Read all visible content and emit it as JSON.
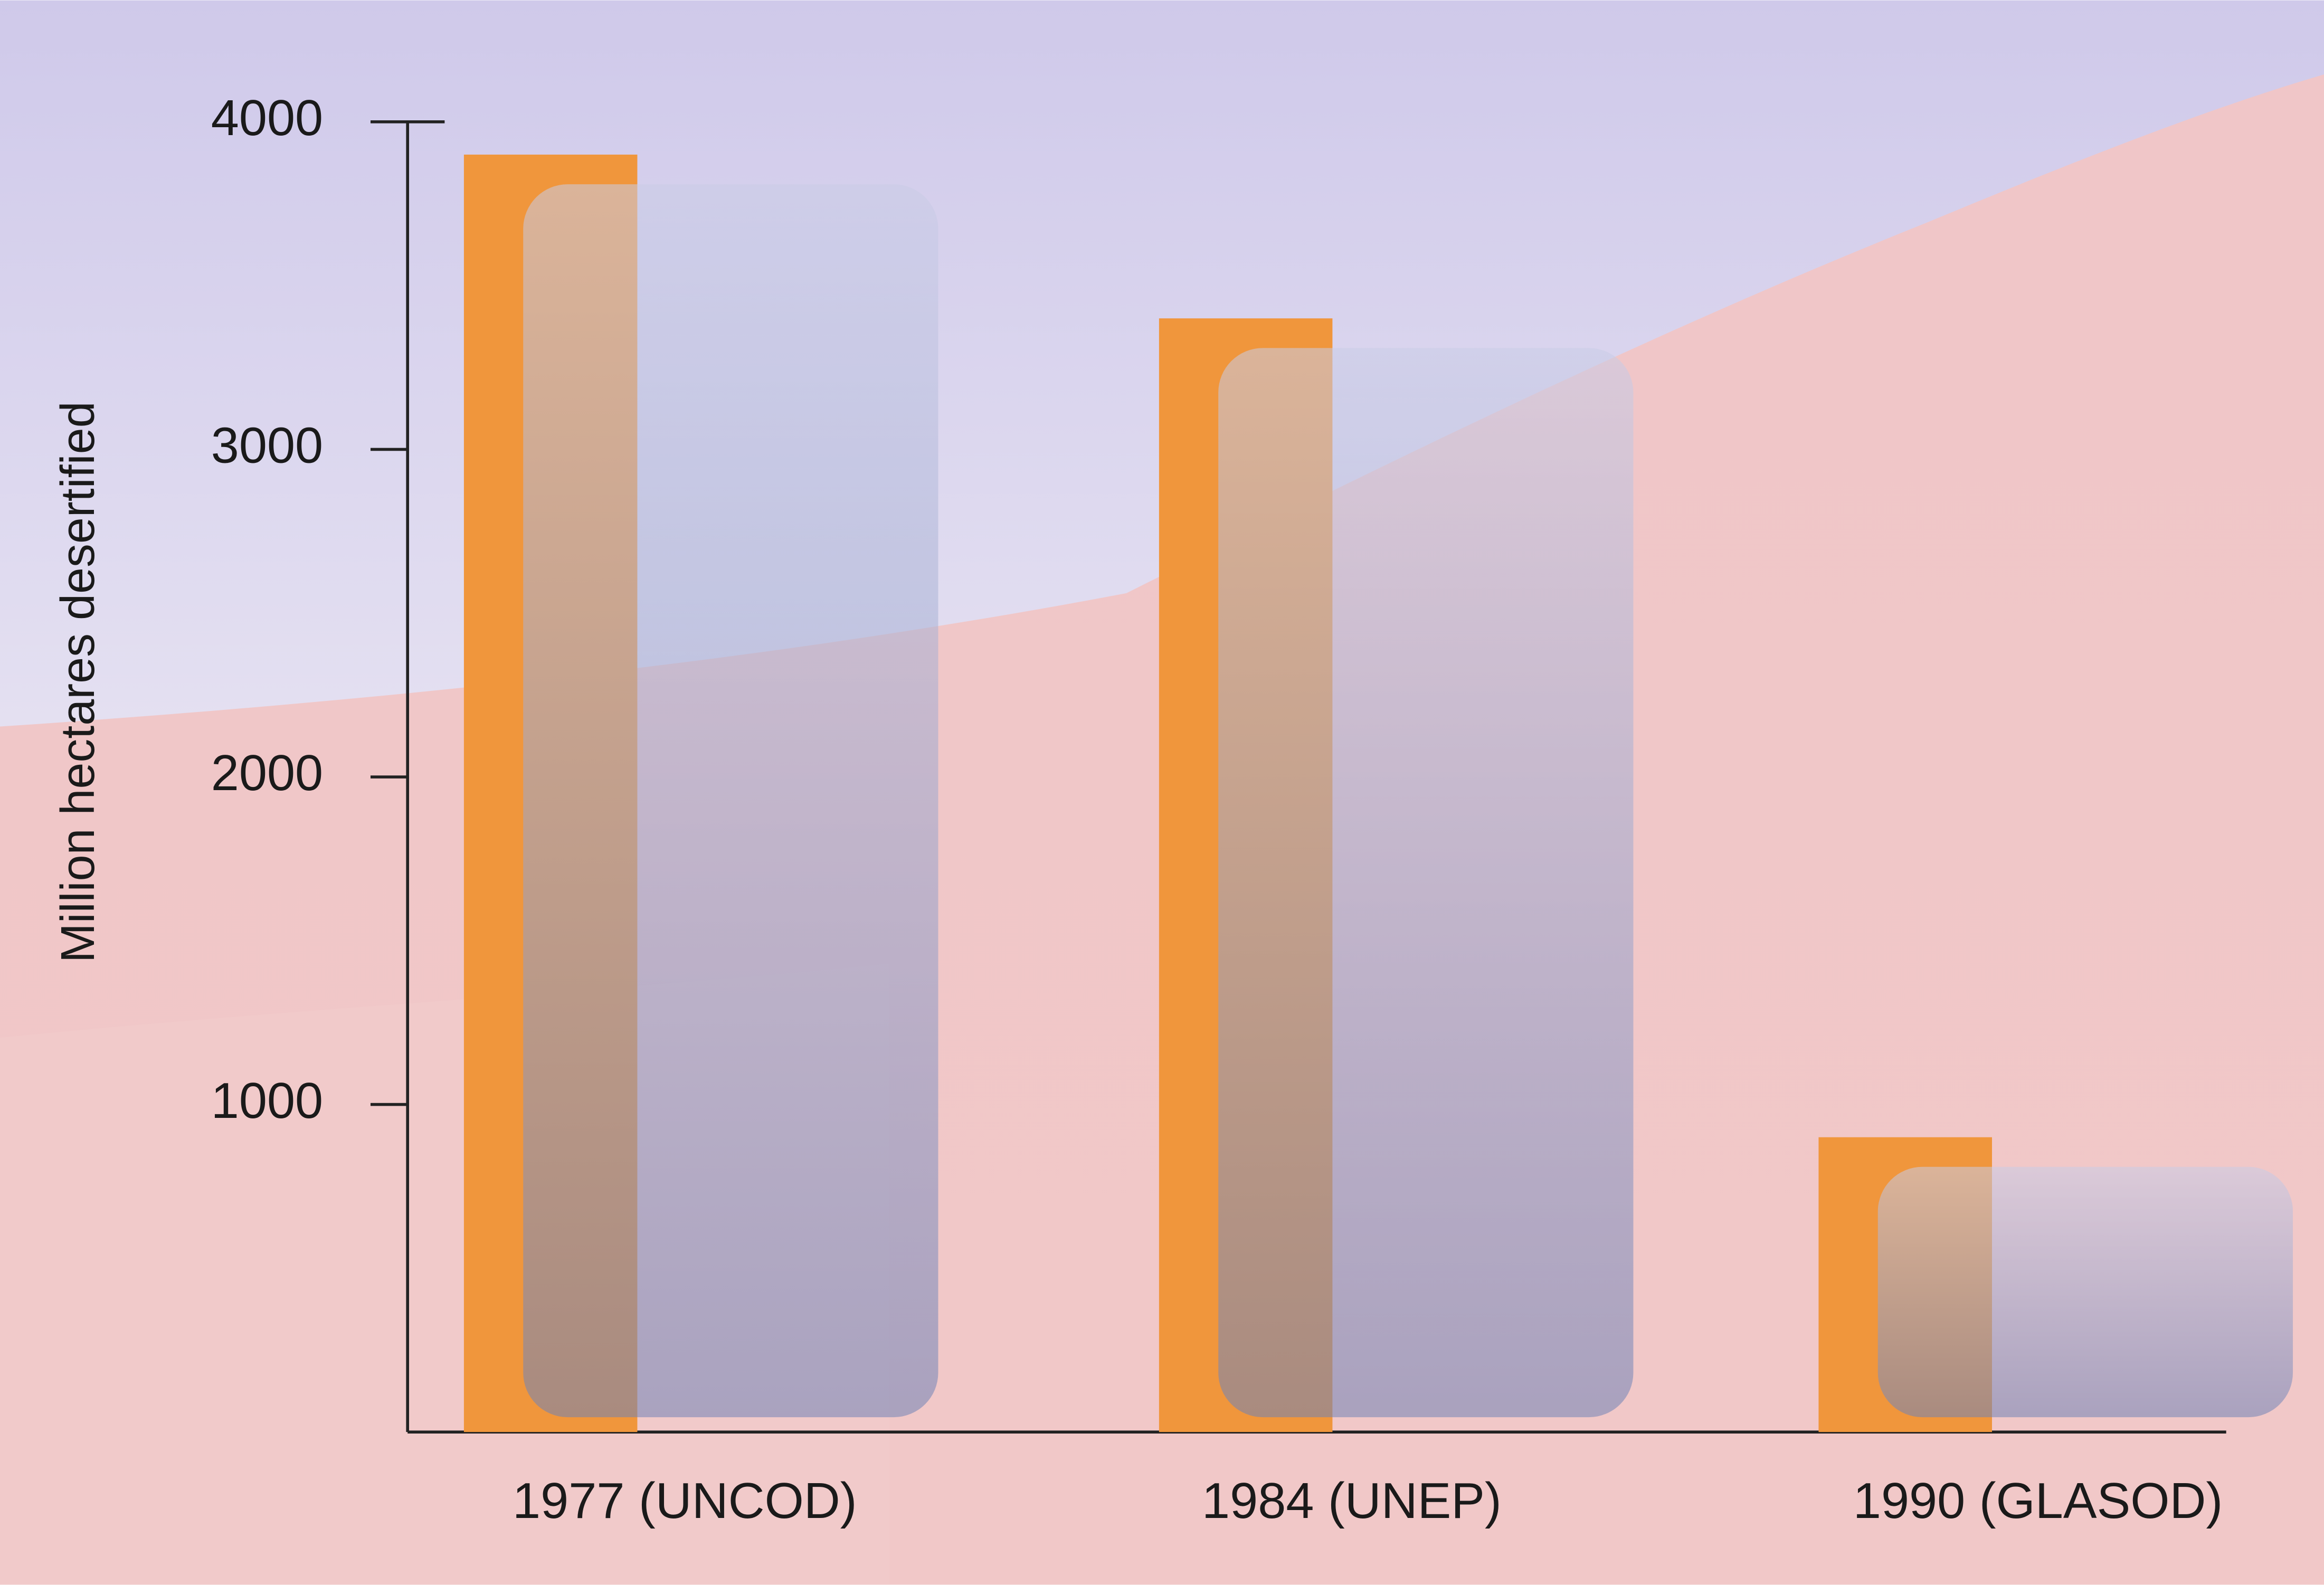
{
  "chart_data": {
    "type": "bar",
    "y_label": "Million hectares desertified",
    "categories": [
      "1977 (UNCOD)",
      "1984 (UNEP)",
      "1990 (GLASOD)"
    ],
    "values": [
      3900,
      3400,
      900
    ],
    "color": "#f0963c",
    "ylim": [
      0,
      4000
    ],
    "yticks": [
      1000,
      2000,
      3000,
      4000
    ],
    "grid": false
  }
}
